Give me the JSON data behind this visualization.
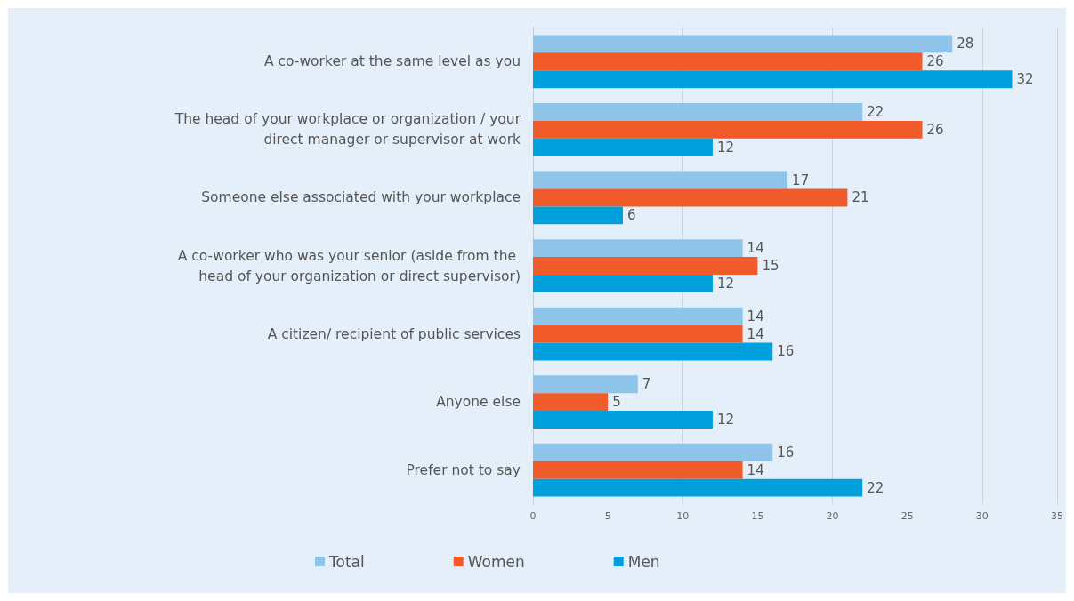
{
  "chart_data": {
    "type": "bar",
    "orientation": "horizontal",
    "categories": [
      "A co-worker at the same level as you",
      "The head of your workplace or organization / your direct manager or supervisor at work",
      "Someone else associated with your workplace",
      "A co-worker who was your senior (aside from the head of your organization or direct supervisor)",
      "A citizen/ recipient of public services",
      "Anyone else",
      "Prefer not to say"
    ],
    "series": [
      {
        "name": "Total",
        "color": "#8ec4ea",
        "values": [
          28,
          22,
          17,
          14,
          14,
          7,
          16
        ]
      },
      {
        "name": "Women",
        "color": "#f15a29",
        "values": [
          26,
          26,
          21,
          15,
          14,
          5,
          14
        ]
      },
      {
        "name": "Men",
        "color": "#00a0dc",
        "values": [
          32,
          12,
          6,
          12,
          16,
          12,
          22
        ]
      }
    ],
    "xlim": [
      0,
      35
    ],
    "xticks": [
      0,
      5,
      10,
      15,
      20,
      25,
      30,
      35
    ],
    "grid": "x",
    "legend": "bottom",
    "data_labels": true
  }
}
